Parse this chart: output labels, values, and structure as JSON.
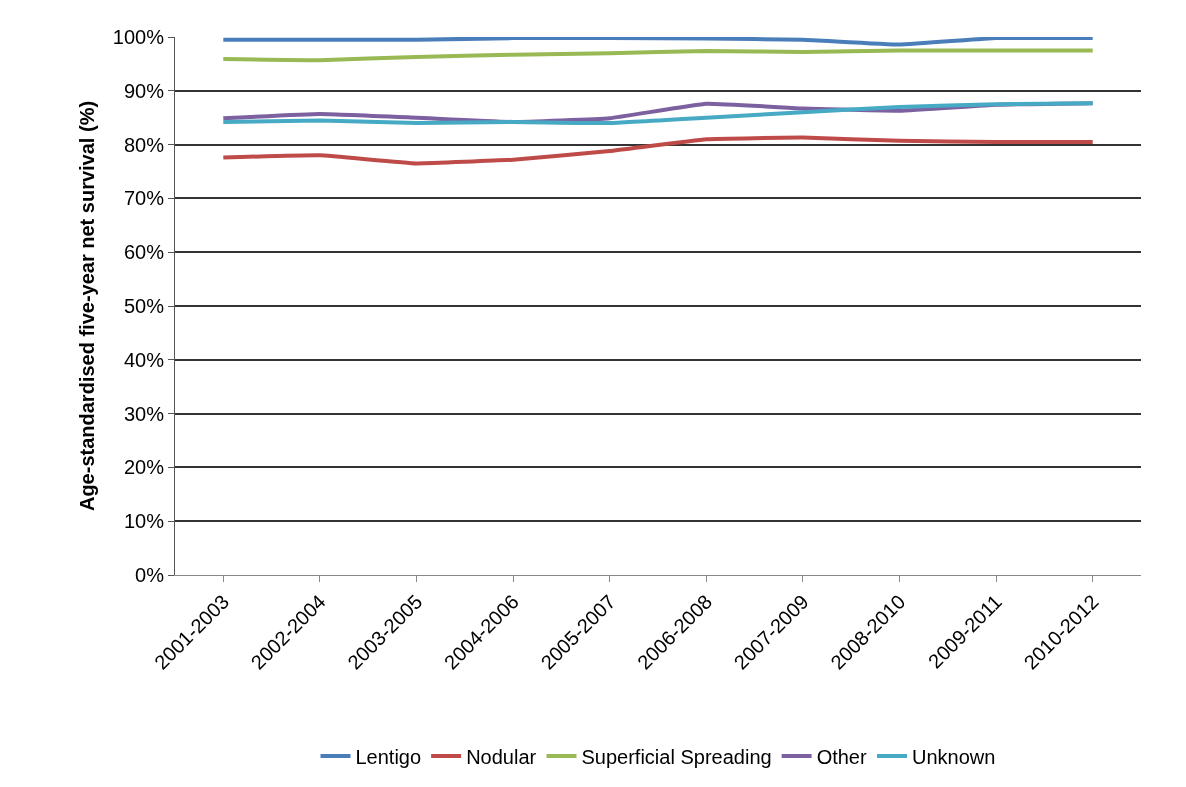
{
  "chart_data": {
    "type": "line",
    "ylabel": "Age-standardised five-year net survival (%)",
    "categories": [
      "2001-2003",
      "2002-2004",
      "2003-2005",
      "2004-2006",
      "2005-2007",
      "2006-2008",
      "2007-2009",
      "2008-2010",
      "2009-2011",
      "2010-2012"
    ],
    "series": [
      {
        "name": "Lentigo",
        "color": "#4a7ebb",
        "values": [
          99.5,
          99.5,
          99.5,
          99.8,
          99.8,
          99.7,
          99.5,
          98.6,
          99.8,
          99.8
        ]
      },
      {
        "name": "Nodular",
        "color": "#be4b48",
        "values": [
          77.6,
          78.0,
          76.5,
          77.2,
          78.8,
          81.0,
          81.3,
          80.7,
          80.5,
          80.5
        ]
      },
      {
        "name": "Superficial Spreading",
        "color": "#98b954",
        "values": [
          95.9,
          95.7,
          96.3,
          96.7,
          97.0,
          97.4,
          97.2,
          97.5,
          97.5,
          97.5
        ]
      },
      {
        "name": "Other",
        "color": "#7d60a0",
        "values": [
          84.9,
          85.7,
          85.0,
          84.2,
          84.9,
          87.6,
          86.7,
          86.3,
          87.4,
          87.7
        ]
      },
      {
        "name": "Unknown",
        "color": "#46aac5",
        "values": [
          84.2,
          84.5,
          84.0,
          84.2,
          84.0,
          85.0,
          86.0,
          87.0,
          87.5,
          87.7
        ]
      }
    ],
    "ylim": [
      0,
      100
    ],
    "yticks": [
      {
        "value": 0,
        "label": "0%"
      },
      {
        "value": 10,
        "label": "10%"
      },
      {
        "value": 20,
        "label": "20%"
      },
      {
        "value": 30,
        "label": "30%"
      },
      {
        "value": 40,
        "label": "40%"
      },
      {
        "value": 50,
        "label": "50%"
      },
      {
        "value": 60,
        "label": "60%"
      },
      {
        "value": 70,
        "label": "70%"
      },
      {
        "value": 80,
        "label": "80%"
      },
      {
        "value": 90,
        "label": "90%"
      },
      {
        "value": 100,
        "label": "100%"
      }
    ],
    "grid": "y",
    "legend": "bottom",
    "marker": "none",
    "line_style": "solid"
  }
}
